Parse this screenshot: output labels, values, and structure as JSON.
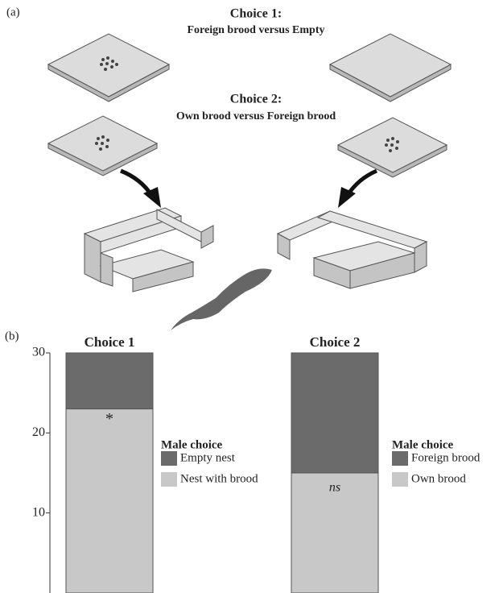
{
  "panel_a": {
    "label": "(a)",
    "choice1_title": "Choice 1:",
    "choice1_subtitle": "Foreign brood versus Empty",
    "choice2_title": "Choice 2:",
    "choice2_subtitle": "Own brood versus Foreign brood"
  },
  "panel_b_label": "(b)",
  "chart_data": [
    {
      "type": "bar",
      "stacked": true,
      "title": "Choice 1",
      "categories": [
        null
      ],
      "series": [
        {
          "name": "Nest with brood",
          "color": "#c8c8c8",
          "values": [
            23
          ]
        },
        {
          "name": "Empty nest",
          "color": "#6b6b6b",
          "values": [
            7
          ]
        }
      ],
      "legend_title": "Male choice",
      "annotation": "*",
      "annotation_italic": false,
      "ylim": [
        0,
        30
      ],
      "yticks": [
        10,
        20,
        30
      ],
      "show_yaxis": true
    },
    {
      "type": "bar",
      "stacked": true,
      "title": "Choice 2",
      "categories": [
        null
      ],
      "series": [
        {
          "name": "Own brood",
          "color": "#c8c8c8",
          "values": [
            15
          ]
        },
        {
          "name": "Foreign brood",
          "color": "#6b6b6b",
          "values": [
            15
          ]
        }
      ],
      "legend_title": "Male choice",
      "annotation": "ns",
      "annotation_italic": true,
      "ylim": [
        0,
        30
      ],
      "yticks": [
        10,
        20,
        30
      ],
      "show_yaxis": false
    }
  ]
}
